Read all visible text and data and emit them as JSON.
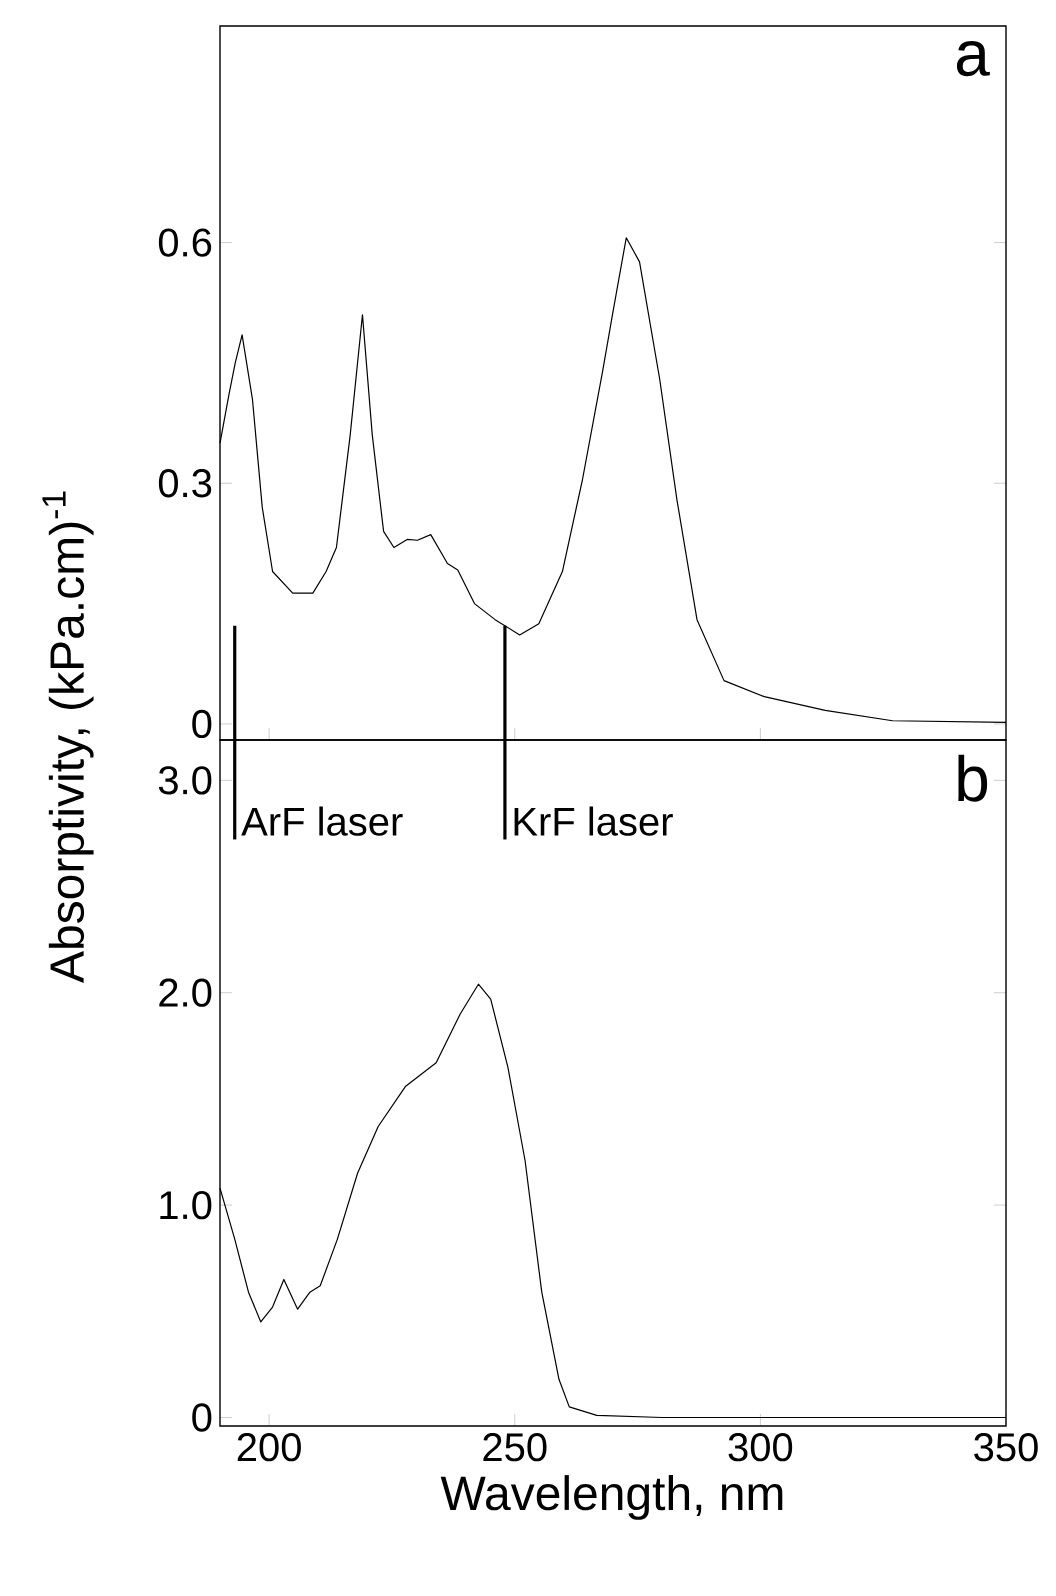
{
  "chart_data": [
    {
      "type": "line",
      "ylabel": "Absorptivity, (kPa.cm)$^{-1}$",
      "annotations": [
        "a"
      ],
      "x": [
        190,
        191.8,
        193.1,
        194.5,
        196.6,
        198.6,
        200.7,
        204.8,
        208.9,
        211.6,
        213.7,
        216.5,
        219,
        221,
        223.3,
        225.4,
        228.1,
        230.2,
        232.9,
        236.3,
        238.4,
        241.8,
        246,
        251,
        254.9,
        259.7,
        263.8,
        267.9,
        270,
        272.7,
        275.4,
        279.5,
        283,
        287.1,
        292.6,
        300.8,
        313.2,
        326.9,
        350
      ],
      "values": [
        0.35,
        0.41,
        0.45,
        0.485,
        0.405,
        0.27,
        0.19,
        0.163,
        0.163,
        0.19,
        0.22,
        0.36,
        0.51,
        0.36,
        0.24,
        0.22,
        0.23,
        0.229,
        0.236,
        0.2,
        0.192,
        0.15,
        0.13,
        0.111,
        0.125,
        0.19,
        0.305,
        0.44,
        0.514,
        0.606,
        0.576,
        0.43,
        0.28,
        0.13,
        0.054,
        0.034,
        0.017,
        0.004,
        0.002
      ],
      "xlim": [
        190,
        350
      ],
      "xticks": [
        200,
        250,
        300
      ],
      "ylim": [
        -0.02,
        0.87
      ],
      "yticks": [
        0,
        0.3,
        0.6
      ],
      "tick_labels": "y",
      "ref_lines": [
        {
          "axis": "x",
          "value": 193
        },
        {
          "axis": "x",
          "value": 248
        }
      ]
    },
    {
      "type": "line",
      "xlabel": "Wavelength, nm",
      "annotations": [
        "b"
      ],
      "x": [
        190,
        193,
        195.8,
        198.3,
        200.7,
        203,
        205.8,
        208.3,
        210.4,
        213.9,
        218,
        222.2,
        227.8,
        234,
        238.9,
        242.6,
        245.1,
        248.6,
        252.1,
        255.5,
        259,
        261.1,
        266.7,
        280,
        300,
        350
      ],
      "values": [
        1.08,
        0.84,
        0.59,
        0.45,
        0.52,
        0.65,
        0.51,
        0.59,
        0.62,
        0.84,
        1.15,
        1.37,
        1.56,
        1.67,
        1.9,
        2.04,
        1.97,
        1.65,
        1.21,
        0.59,
        0.18,
        0.05,
        0.01,
        0,
        0,
        0
      ],
      "xlim": [
        190,
        350
      ],
      "xticks": [
        200,
        250,
        300,
        350
      ],
      "ylim": [
        -0.04,
        3.19
      ],
      "yticks": [
        0,
        {
          "value": 1,
          "label": "1.0"
        },
        {
          "value": 2,
          "label": "2.0"
        },
        {
          "value": 3,
          "label": "3.0"
        }
      ],
      "ref_lines": [
        {
          "axis": "x",
          "value": 193,
          "label": "ArF laser"
        },
        {
          "axis": "x",
          "value": 248,
          "label": "KrF laser"
        }
      ]
    }
  ]
}
